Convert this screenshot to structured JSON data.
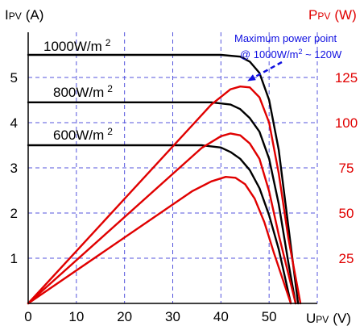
{
  "chart_data": {
    "type": "line",
    "title": "",
    "left_axis": {
      "label_main": "I",
      "label_sub": "PV",
      "label_unit": "(A)",
      "ylim": [
        0,
        6
      ],
      "ticks": [
        1,
        2,
        3,
        4,
        5
      ],
      "tick_labels": [
        "1",
        "2",
        "3",
        "4",
        "5"
      ],
      "color": "#000000"
    },
    "right_axis": {
      "label_main": "P",
      "label_sub": "PV",
      "label_unit": "(W)",
      "ylim": [
        0,
        150
      ],
      "ticks": [
        25,
        50,
        75,
        100,
        125
      ],
      "tick_labels": [
        "25",
        "50",
        "75",
        "100",
        "125"
      ],
      "color": "#e00000"
    },
    "x_axis": {
      "label_main": "U",
      "label_sub": "PV",
      "label_unit": "(V)",
      "xlim": [
        0,
        60
      ],
      "ticks": [
        0,
        10,
        20,
        30,
        40,
        50
      ],
      "tick_labels": [
        "0",
        "10",
        "20",
        "30",
        "40",
        "50"
      ]
    },
    "grid": true,
    "grid_color": "#5555dd",
    "series": [
      {
        "name": "1000W/m 2",
        "kind": "current",
        "axis": "left",
        "color": "#000000",
        "label": {
          "text": "1000W/m",
          "sup": "2"
        },
        "x": [
          0,
          40,
          44,
          46,
          48,
          50,
          52,
          54,
          56
        ],
        "y": [
          5.5,
          5.5,
          5.46,
          5.35,
          5.1,
          4.5,
          3.4,
          1.7,
          0
        ]
      },
      {
        "name": "800W/m 2",
        "kind": "current",
        "axis": "left",
        "color": "#000000",
        "label": {
          "text": "800W/m",
          "sup": "2"
        },
        "x": [
          0,
          38,
          42,
          44,
          46,
          48,
          50,
          52,
          54,
          55.5
        ],
        "y": [
          4.45,
          4.45,
          4.4,
          4.3,
          4.1,
          3.8,
          3.2,
          2.2,
          0.9,
          0
        ]
      },
      {
        "name": "600W/m 2",
        "kind": "current",
        "axis": "left",
        "color": "#000000",
        "label": {
          "text": "600W/m",
          "sup": "2"
        },
        "x": [
          0,
          36,
          40,
          42,
          44,
          46,
          48,
          50,
          52,
          54.5
        ],
        "y": [
          3.5,
          3.5,
          3.45,
          3.35,
          3.2,
          2.95,
          2.55,
          1.95,
          1.2,
          0
        ]
      },
      {
        "name": "P 1000W/m2",
        "kind": "power",
        "axis": "right",
        "color": "#e00000",
        "x": [
          0,
          38,
          42,
          44,
          46,
          48,
          50,
          52,
          54,
          56.5
        ],
        "y": [
          0,
          110,
          118.5,
          120,
          119.5,
          114,
          100,
          72,
          36,
          0
        ]
      },
      {
        "name": "P 800W/m2",
        "kind": "power",
        "axis": "right",
        "color": "#e00000",
        "x": [
          0,
          36,
          40,
          42,
          44,
          46,
          48,
          50,
          52,
          55.5
        ],
        "y": [
          0,
          86,
          92.5,
          94,
          93,
          88.5,
          80,
          62,
          38,
          0
        ]
      },
      {
        "name": "P 600W/m2",
        "kind": "power",
        "axis": "right",
        "color": "#e00000",
        "x": [
          0,
          34,
          38,
          41,
          43,
          45,
          47,
          49,
          51,
          54.5
        ],
        "y": [
          0,
          62,
          67.5,
          70,
          69.5,
          66,
          58,
          45,
          28,
          0
        ]
      }
    ],
    "annotation": {
      "line1": "Maximum power point",
      "line2_pre": "@ 1000W/m",
      "line2_sup": "2",
      "line2_post": " ~ 120W",
      "color": "#1010e0",
      "arrow_target": {
        "x": 48.5,
        "y_current": 4.7
      }
    }
  }
}
